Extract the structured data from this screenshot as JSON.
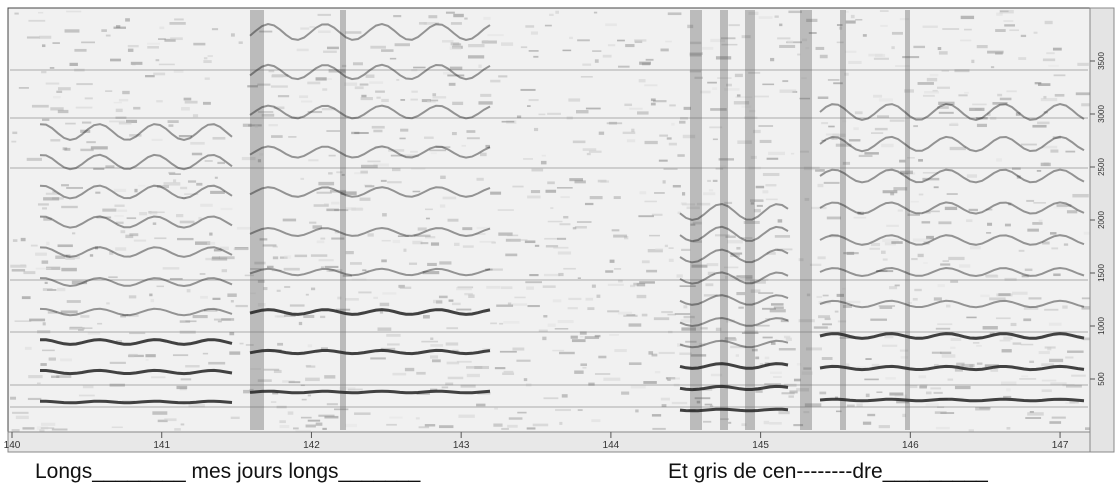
{
  "chart_data": {
    "type": "spectrogram",
    "xlim": [
      140,
      147.2
    ],
    "xticks": [
      140,
      141,
      142,
      143,
      144,
      145,
      146,
      147
    ],
    "y2lim": [
      0,
      4000
    ],
    "y2ticks": [
      500,
      1000,
      1500,
      2000,
      2500,
      3000,
      3500
    ],
    "lyrics": [
      "Longs________ mes jours longs_______",
      "Et gris de cen--------dre_________"
    ]
  }
}
